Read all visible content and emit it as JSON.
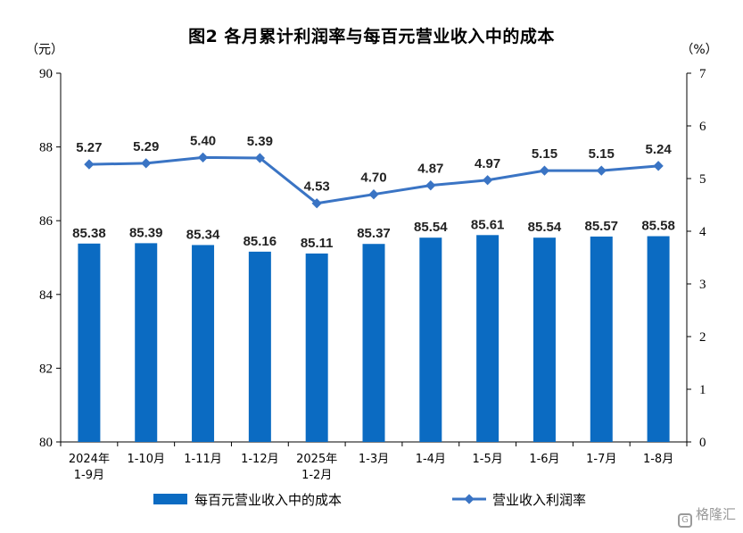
{
  "chart_data": {
    "type": "bar",
    "title": "图2  各月累计利润率与每百元营业收入中的成本",
    "left_unit": "（元）",
    "right_unit": "（%）",
    "categories": [
      [
        "2024年",
        "1-9月"
      ],
      [
        "1-10月"
      ],
      [
        "1-11月"
      ],
      [
        "1-12月"
      ],
      [
        "2025年",
        "1-2月"
      ],
      [
        "1-3月"
      ],
      [
        "1-4月"
      ],
      [
        "1-5月"
      ],
      [
        "1-6月"
      ],
      [
        "1-7月"
      ],
      [
        "1-8月"
      ]
    ],
    "y_left": {
      "lim": [
        80,
        90
      ],
      "ticks": [
        "80",
        "82",
        "84",
        "86",
        "88",
        "90"
      ]
    },
    "y_right": {
      "lim": [
        0,
        7
      ],
      "ticks": [
        "0",
        "1",
        "2",
        "3",
        "4",
        "5",
        "6",
        "7"
      ]
    },
    "series": [
      {
        "name": "每百元营业收入中的成本",
        "type": "bar",
        "axis": "left",
        "color": "#0B6BC2",
        "values": [
          85.38,
          85.39,
          85.34,
          85.16,
          85.11,
          85.37,
          85.54,
          85.61,
          85.54,
          85.57,
          85.58
        ],
        "labels": [
          "85.38",
          "85.39",
          "85.34",
          "85.16",
          "85.11",
          "85.37",
          "85.54",
          "85.61",
          "85.54",
          "85.57",
          "85.58"
        ]
      },
      {
        "name": "营业收入利润率",
        "type": "line",
        "axis": "right",
        "color": "#3A74C4",
        "values": [
          5.27,
          5.29,
          5.4,
          5.39,
          4.53,
          4.7,
          4.87,
          4.97,
          5.15,
          5.15,
          5.24
        ],
        "labels": [
          "5.27",
          "5.29",
          "5.40",
          "5.39",
          "4.53",
          "4.70",
          "4.87",
          "4.97",
          "5.15",
          "5.15",
          "5.24"
        ]
      }
    ],
    "legend_position": "bottom",
    "grid": false
  },
  "watermark": {
    "icon": "gelonghui-logo-icon",
    "text": "格隆汇"
  }
}
